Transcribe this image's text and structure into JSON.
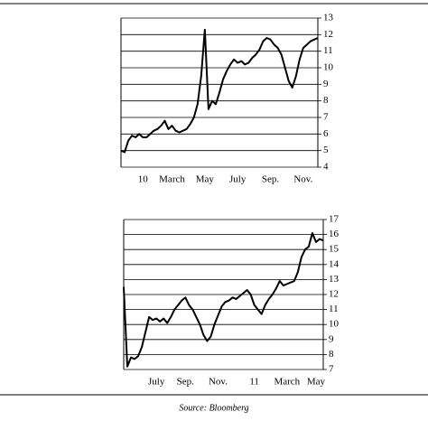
{
  "chart_data": [
    {
      "type": "line",
      "categories": [
        null,
        null,
        null,
        null,
        null,
        null,
        "10",
        null,
        null,
        null,
        null,
        null,
        null,
        null,
        "March",
        null,
        null,
        null,
        null,
        null,
        null,
        null,
        null,
        "May",
        null,
        null,
        null,
        null,
        null,
        null,
        null,
        null,
        "July",
        null,
        null,
        null,
        null,
        null,
        null,
        null,
        null,
        "Sep.",
        null,
        null,
        null,
        null,
        null,
        null,
        null,
        null,
        "Nov.",
        null,
        null,
        null,
        null
      ],
      "series": [
        {
          "color": "#000000",
          "values": [
            5.0,
            4.9,
            5.6,
            5.9,
            5.8,
            6.0,
            5.8,
            5.8,
            6.0,
            6.2,
            6.3,
            6.5,
            6.8,
            6.3,
            6.5,
            6.2,
            6.1,
            6.2,
            6.3,
            6.6,
            7.0,
            7.8,
            9.5,
            12.3,
            7.5,
            8.0,
            7.8,
            8.5,
            9.3,
            9.8,
            10.2,
            10.5,
            10.3,
            10.4,
            10.2,
            10.3,
            10.6,
            10.8,
            11.1,
            11.6,
            11.8,
            11.7,
            11.4,
            11.2,
            10.8,
            10.0,
            9.2,
            8.8,
            9.5,
            10.5,
            11.2,
            11.4,
            11.6,
            11.7,
            11.8
          ]
        }
      ],
      "ylim": [
        4,
        13
      ],
      "yticks": [
        4,
        5,
        6,
        7,
        8,
        9,
        10,
        11,
        12,
        13
      ],
      "grid": true
    },
    {
      "type": "line",
      "categories": [
        null,
        null,
        null,
        null,
        null,
        null,
        null,
        null,
        null,
        "July",
        null,
        null,
        null,
        null,
        null,
        null,
        null,
        "Sep.",
        null,
        null,
        null,
        null,
        null,
        null,
        null,
        null,
        "Nov.",
        null,
        null,
        null,
        null,
        null,
        null,
        null,
        null,
        null,
        "11",
        null,
        null,
        null,
        null,
        null,
        null,
        null,
        null,
        "March",
        null,
        null,
        null,
        null,
        null,
        null,
        null,
        "May",
        null,
        null
      ],
      "series": [
        {
          "color": "#000000",
          "values": [
            12.5,
            7.2,
            7.8,
            7.7,
            7.9,
            8.5,
            9.5,
            10.5,
            10.3,
            10.4,
            10.2,
            10.4,
            10.1,
            10.5,
            11.0,
            11.3,
            11.6,
            11.8,
            11.3,
            11.0,
            10.5,
            10.0,
            9.3,
            8.9,
            9.2,
            10.0,
            10.6,
            11.2,
            11.5,
            11.6,
            11.8,
            11.7,
            11.9,
            12.1,
            12.3,
            12.0,
            11.3,
            11.0,
            10.7,
            11.3,
            11.7,
            12.0,
            12.4,
            12.9,
            12.6,
            12.7,
            12.8,
            12.9,
            13.5,
            14.5,
            15.0,
            15.2,
            16.1,
            15.5,
            15.7,
            15.6
          ]
        }
      ],
      "ylim": [
        7,
        17
      ],
      "yticks": [
        7,
        8,
        9,
        10,
        11,
        12,
        13,
        14,
        15,
        16,
        17
      ],
      "grid": true
    }
  ],
  "source": "Source:  Bloomberg"
}
